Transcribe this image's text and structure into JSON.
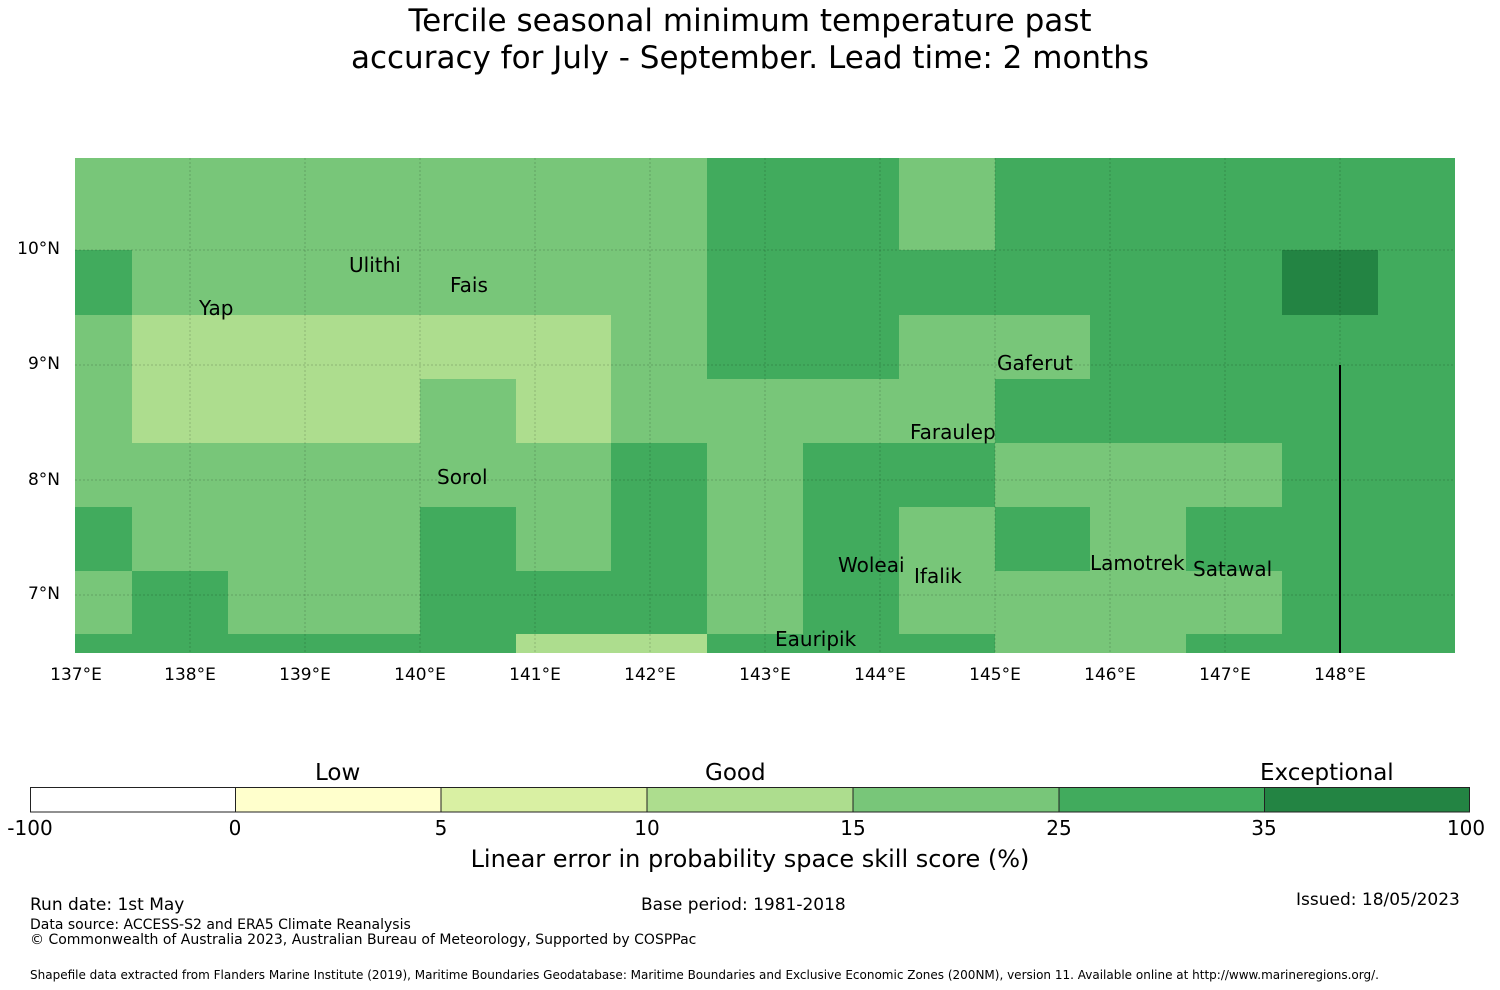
{
  "title_line1": "Tercile seasonal minimum temperature past",
  "title_line2": "accuracy for July - September. Lead time: 2 months",
  "map": {
    "lon_range": [
      137.0,
      148.95
    ],
    "lat_range": [
      6.5,
      10.8
    ],
    "lon_ticks": [
      "137°E",
      "138°E",
      "139°E",
      "140°E",
      "141°E",
      "142°E",
      "143°E",
      "144°E",
      "145°E",
      "146°E",
      "147°E",
      "148°E"
    ],
    "lat_ticks": [
      "10°N",
      "9°N",
      "8°N",
      "7°N"
    ],
    "places": [
      {
        "name": "Ulithi",
        "lon": 139.72,
        "lat": 9.93
      },
      {
        "name": "Fais",
        "lon": 140.52,
        "lat": 9.76
      },
      {
        "name": "Yap",
        "lon": 138.13,
        "lat": 9.52
      },
      {
        "name": "Gaferut",
        "lon": 145.37,
        "lat": 9.22
      },
      {
        "name": "Faraulep",
        "lon": 144.52,
        "lat": 8.6
      },
      {
        "name": "Sorol",
        "lon": 140.39,
        "lat": 8.14
      },
      {
        "name": "Woleai",
        "lon": 143.9,
        "lat": 7.36
      },
      {
        "name": "Ifalik",
        "lon": 144.45,
        "lat": 7.25
      },
      {
        "name": "Lamotrek",
        "lon": 146.37,
        "lat": 7.46
      },
      {
        "name": "Satawal",
        "lon": 147.03,
        "lat": 7.37
      },
      {
        "name": "Eauripik",
        "lon": 143.04,
        "lat": 6.69
      }
    ],
    "boundary_line": {
      "lon": 148.0,
      "lat_from": 6.5,
      "lat_to": 9.0
    }
  },
  "legend": {
    "category_labels": [
      "Low",
      "Good",
      "Exceptional"
    ],
    "ticks": [
      "-100",
      "0",
      "5",
      "10",
      "15",
      "25",
      "35",
      "100"
    ],
    "colors": [
      "#ffffff",
      "#ffffcc",
      "#d9f0a3",
      "#addd8e",
      "#78c679",
      "#41ab5d",
      "#238443"
    ],
    "label": "Linear error in probability space skill score (%)"
  },
  "footer": {
    "run_date": "Run date: 1st May",
    "base_period": "Base period: 1981-2018",
    "issued": "Issued: 18/05/2023",
    "data_source": "Data source: ACCESS-S2 and ERA5 Climate Reanalysis",
    "copyright": "© Commonwealth of Australia 2023, Australian Bureau of Meteorology, Supported by COSPPac",
    "shapefile": "Shapefile data extracted from Flanders Marine Institute (2019), Maritime Boundaries Geodatabase: Maritime Boundaries and Exclusive Economic Zones (200NM), version 11. Available online at http://www.marineregions.org/."
  }
}
